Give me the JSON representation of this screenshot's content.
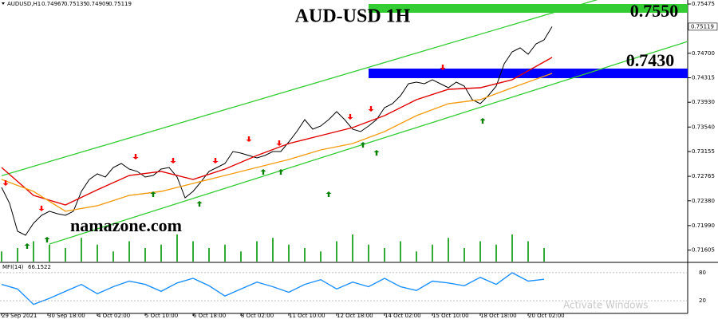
{
  "chart_data": {
    "type": "line",
    "title": "AUD-USD 1H",
    "site": "namazone.com",
    "watermark": "Activate Windows",
    "header": {
      "symbol": "AUDUSD,H1",
      "open": 0.74967,
      "high": 0.75135,
      "low": 0.74909,
      "close": 0.75119
    },
    "xlim": [
      -0.2,
      86
    ],
    "ylim": [
      0.71424,
      0.75538
    ],
    "yticks": [
      0.75475,
      {
        "value": 0.747,
        "label": "0.74700"
      },
      0.74315,
      {
        "value": 0.7393,
        "label": "0.73930"
      },
      {
        "value": 0.7354,
        "label": "0.73540"
      },
      0.73155,
      0.72765,
      {
        "value": 0.7238,
        "label": "0.72380"
      },
      {
        "value": 0.7199,
        "label": "0.71990"
      },
      0.71605
    ],
    "xticks": [
      {
        "value": 0,
        "label": "29 Sep 2021"
      },
      {
        "value": 5.8,
        "label": "30 Sep 18:00"
      },
      {
        "value": 12,
        "label": "4 Oct 02:00"
      },
      {
        "value": 18,
        "label": "5 Oct 10:00"
      },
      {
        "value": 24,
        "label": "6 Oct 18:00"
      },
      {
        "value": 30,
        "label": "8 Oct 02:00"
      },
      {
        "value": 36,
        "label": "11 Oct 10:00"
      },
      {
        "value": 42,
        "label": "12 Oct 18:00"
      },
      {
        "value": 48,
        "label": "14 Oct 02:00"
      },
      {
        "value": 54,
        "label": "15 Oct 10:00"
      },
      {
        "value": 60,
        "label": "18 Oct 18:00"
      },
      {
        "value": 66,
        "label": "20 Oct 02:00"
      }
    ],
    "series": [
      {
        "color": "#000000",
        "x": [
          0,
          1,
          2,
          3,
          4,
          5,
          6,
          7,
          8,
          9,
          10,
          11,
          12,
          13,
          14,
          15,
          16,
          17,
          18,
          19,
          20,
          21,
          22,
          23,
          24,
          25,
          26,
          27,
          28,
          29,
          30,
          31,
          32,
          33,
          34,
          35,
          36,
          37,
          38,
          39,
          40,
          41,
          42,
          43,
          44,
          45,
          46,
          47,
          48,
          49,
          50,
          51,
          52,
          53,
          54,
          55,
          56,
          57,
          58,
          59,
          60,
          61,
          62,
          63,
          64,
          65,
          66,
          67,
          68,
          69
        ],
        "values": [
          0.72591,
          0.7234,
          0.71901,
          0.71838,
          0.72026,
          0.72152,
          0.72215,
          0.72177,
          0.72152,
          0.72215,
          0.72528,
          0.72716,
          0.72804,
          0.72754,
          0.72904,
          0.72967,
          0.72879,
          0.72842,
          0.72754,
          0.72779,
          0.72879,
          0.72904,
          0.72754,
          0.72428,
          0.72528,
          0.72679,
          0.72842,
          0.72904,
          0.72967,
          0.73155,
          0.7313,
          0.73092,
          0.73055,
          0.73092,
          0.73155,
          0.73155,
          0.73306,
          0.73469,
          0.73657,
          0.73506,
          0.73556,
          0.73657,
          0.73782,
          0.73657,
          0.73506,
          0.73469,
          0.73556,
          0.73657,
          0.73845,
          0.73907,
          0.74033,
          0.74221,
          0.74246,
          0.74221,
          0.74284,
          0.74221,
          0.74158,
          0.74246,
          0.74183,
          0.7397,
          0.73907,
          0.74033,
          0.74183,
          0.74534,
          0.74723,
          0.74785,
          0.74685,
          0.74848,
          0.74911,
          0.75119
        ]
      },
      {
        "color": "#e00000",
        "x": [
          0,
          4,
          8,
          12,
          16,
          20,
          24,
          28,
          32,
          36,
          40,
          44,
          48,
          52,
          56,
          60,
          64,
          69
        ],
        "values": [
          0.72904,
          0.72465,
          0.72315,
          0.72553,
          0.72779,
          0.72842,
          0.72716,
          0.72879,
          0.73092,
          0.7328,
          0.73406,
          0.73531,
          0.73719,
          0.7397,
          0.74133,
          0.74158,
          0.74284,
          0.74635
        ]
      },
      {
        "color": "#f39c12",
        "x": [
          0,
          4,
          8,
          12,
          16,
          20,
          24,
          28,
          32,
          36,
          40,
          44,
          48,
          52,
          56,
          60,
          64,
          69
        ],
        "values": [
          0.72716,
          0.72528,
          0.72215,
          0.72302,
          0.72465,
          0.72528,
          0.72653,
          0.72779,
          0.72904,
          0.7303,
          0.7318,
          0.7328,
          0.73469,
          0.73719,
          0.73907,
          0.7397,
          0.74158,
          0.74384
        ]
      }
    ],
    "channel": {
      "color": "#33cc33",
      "lines": [
        {
          "x": [
            0,
            86
          ],
          "values": [
            0.72774,
            0.75964
          ]
        },
        {
          "x": [
            6,
            86
          ],
          "values": [
            0.717,
            0.74886
          ]
        }
      ]
    },
    "zones": [
      {
        "label": "0.7550",
        "color": "#33cc33",
        "start": 46,
        "range": [
          0.75337,
          0.75475
        ]
      },
      {
        "label": "0.7430",
        "color": "#0000ff",
        "start": 46,
        "range": [
          0.74309,
          0.74459
        ]
      }
    ],
    "signals": {
      "down": {
        "color": "#ff0000",
        "x": [
          0.5,
          5,
          16.8,
          21.5,
          26.8,
          31,
          34.8,
          43.7,
          46.3,
          55.3
        ],
        "values": [
          0.72616,
          0.72215,
          0.7303,
          0.72967,
          0.72967,
          0.73306,
          0.73243,
          0.73657,
          0.73782,
          0.74434
        ]
      },
      "up": {
        "color": "#008000",
        "x": [
          3.2,
          5.7,
          19,
          24.8,
          32.8,
          35,
          41,
          45.3,
          47,
          60.3
        ],
        "values": [
          0.71713,
          0.71813,
          0.72528,
          0.72378,
          0.72879,
          0.72879,
          0.72528,
          0.73306,
          0.7318,
          0.73682
        ]
      }
    },
    "volume": {
      "color": "#33aa33",
      "x": [
        0,
        2,
        4,
        6,
        8,
        10,
        12,
        14,
        16,
        18,
        20,
        22,
        24,
        26,
        28,
        30,
        32,
        34,
        36,
        38,
        40,
        42,
        44,
        46,
        48,
        50,
        52,
        54,
        56,
        58,
        60,
        62,
        64,
        66,
        68
      ],
      "values": [
        3,
        4,
        6,
        5,
        4,
        7,
        5,
        3,
        6,
        4,
        5,
        8,
        6,
        4,
        5,
        3,
        6,
        7,
        5,
        4,
        3,
        6,
        8,
        5,
        4,
        6,
        3,
        5,
        7,
        4,
        6,
        5,
        8,
        6,
        4
      ]
    },
    "mfi": {
      "label": "MFI(14)",
      "value": 66.1522,
      "color": "#1e90ff",
      "ylim": [
        0,
        100
      ],
      "yticks": [
        80,
        20
      ],
      "x": [
        0,
        2,
        4,
        6,
        8,
        10,
        12,
        14,
        16,
        18,
        20,
        22,
        24,
        26,
        28,
        30,
        32,
        34,
        36,
        38,
        40,
        42,
        44,
        46,
        48,
        50,
        52,
        54,
        56,
        58,
        60,
        62,
        64,
        66,
        68
      ],
      "values": [
        55,
        45,
        12,
        25,
        40,
        55,
        35,
        50,
        62,
        55,
        40,
        58,
        68,
        52,
        30,
        45,
        60,
        50,
        38,
        55,
        65,
        45,
        60,
        50,
        68,
        50,
        42,
        62,
        58,
        52,
        70,
        55,
        80,
        62,
        66
      ]
    }
  }
}
